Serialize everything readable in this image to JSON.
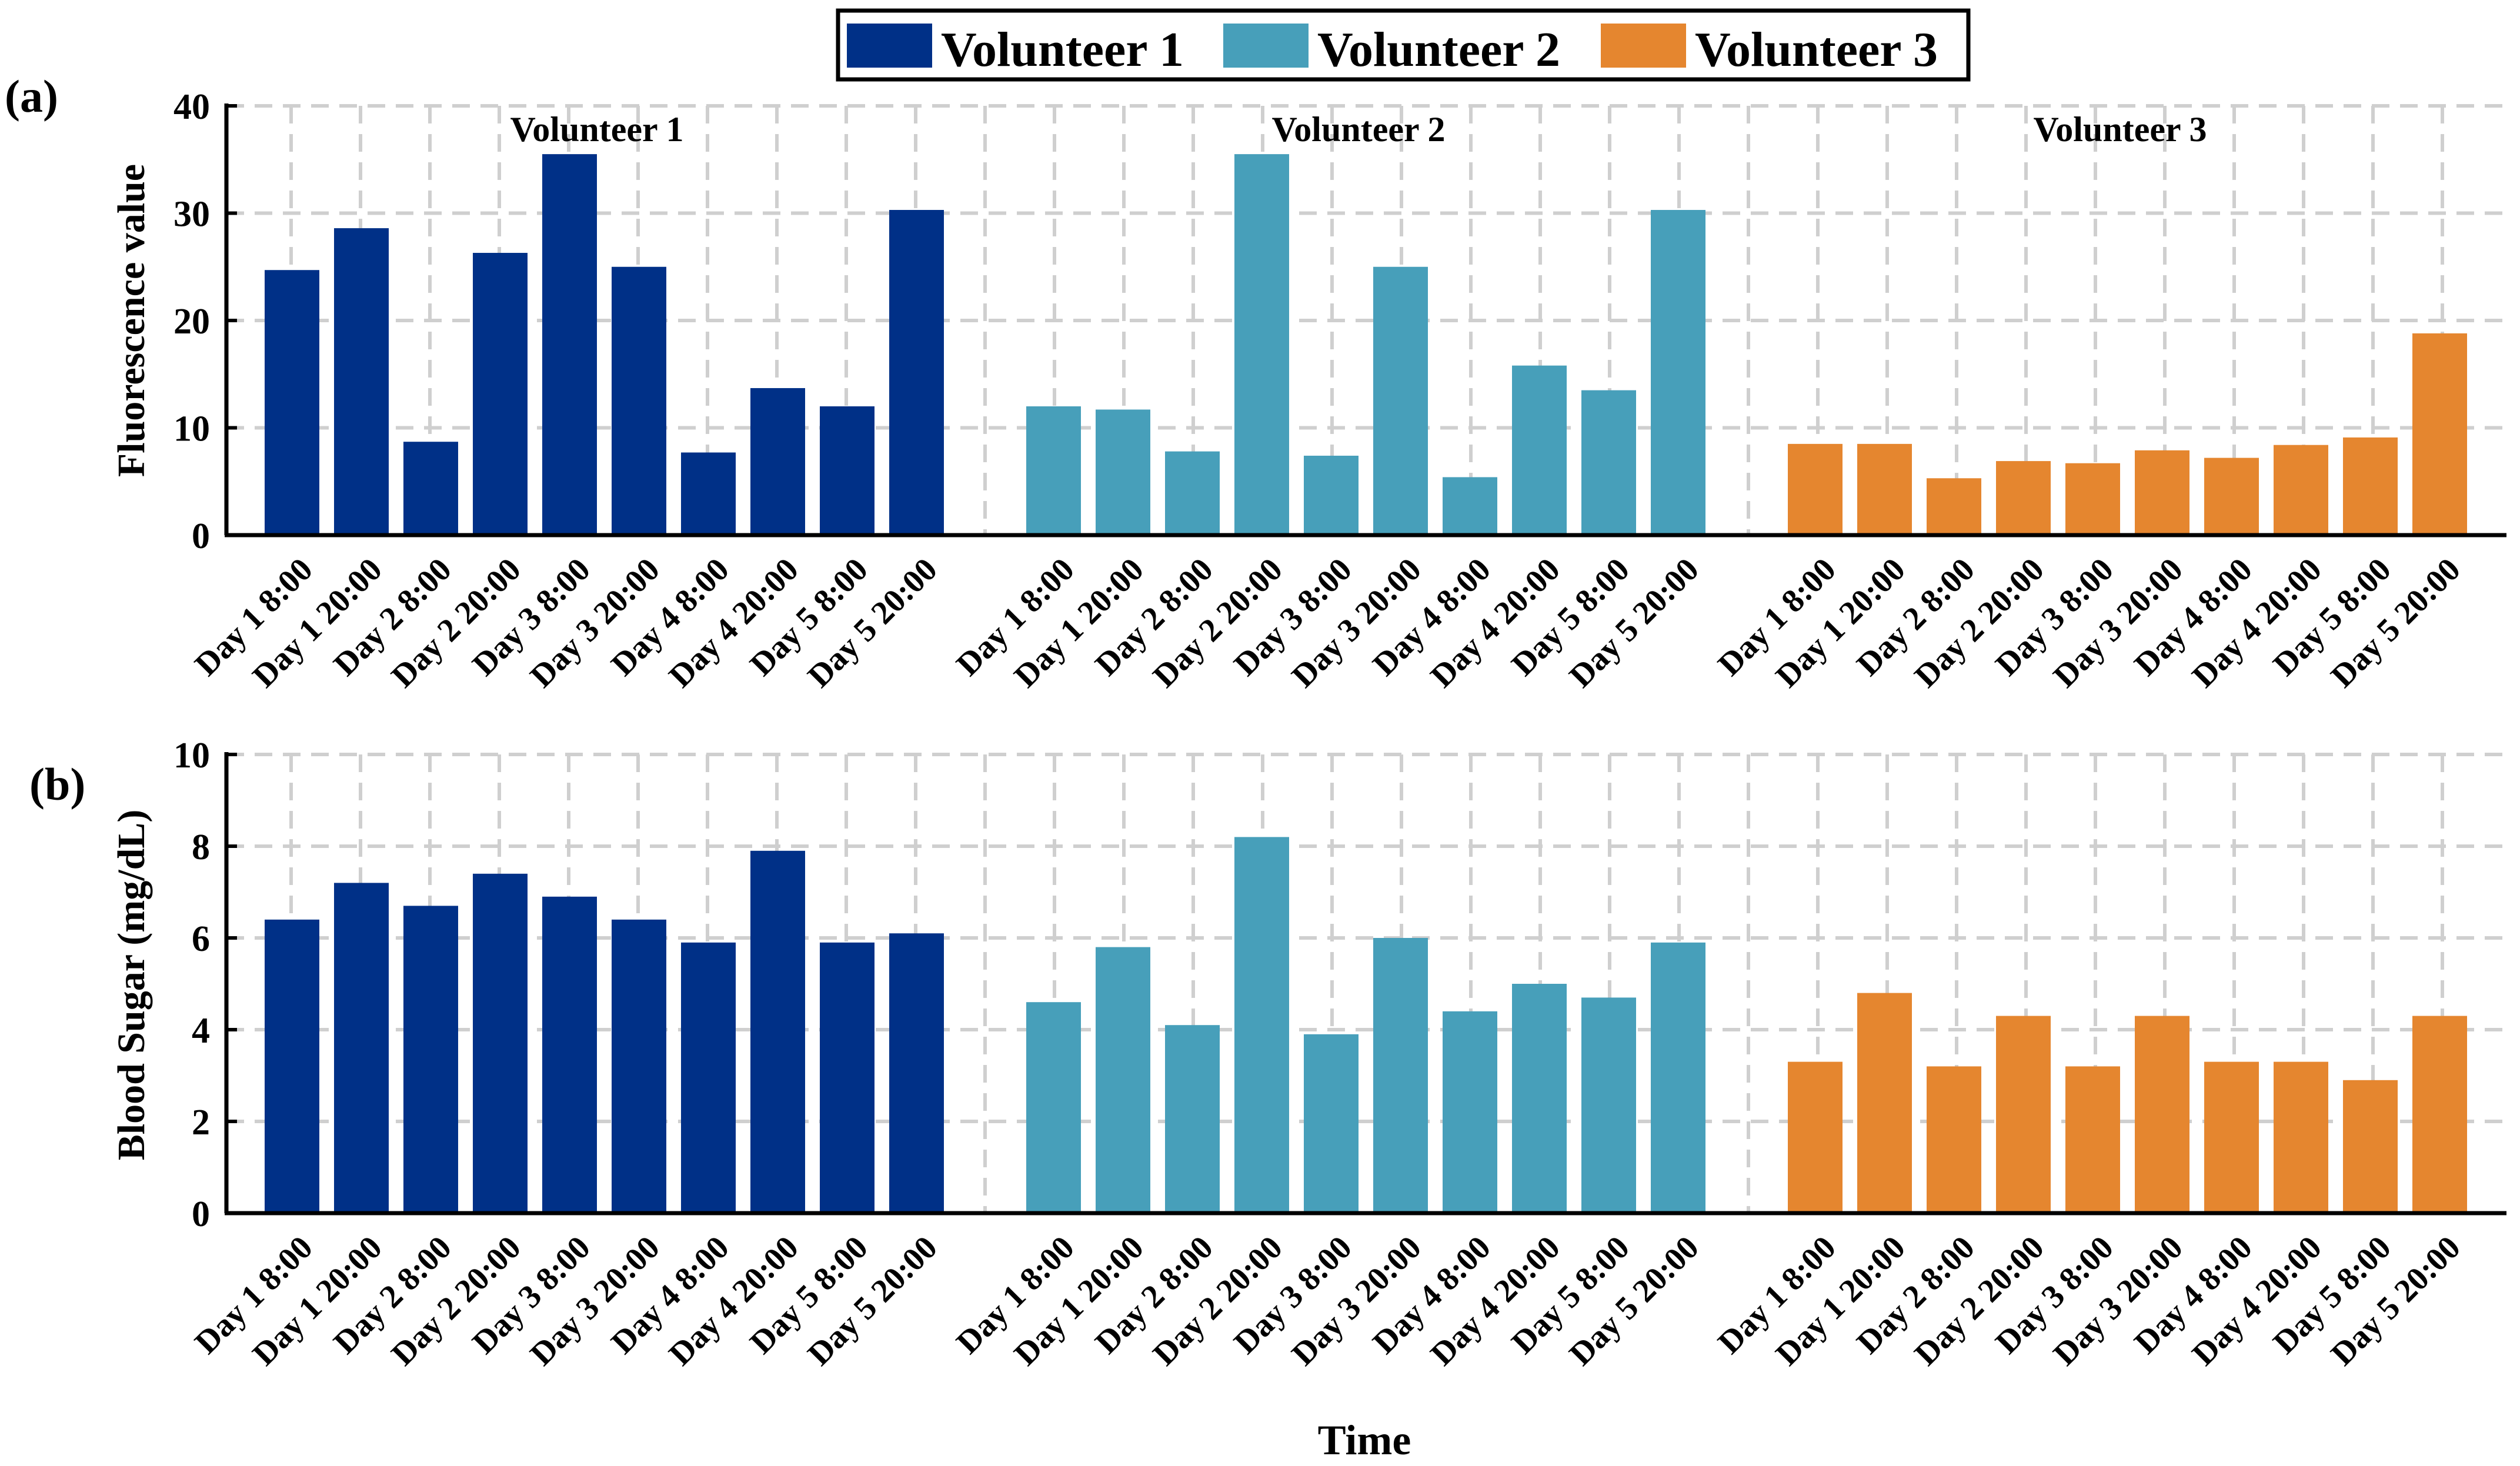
{
  "legend": {
    "entries": [
      {
        "label": "Volunteer 1",
        "color": "#003087"
      },
      {
        "label": "Volunteer 2",
        "color": "#479fba"
      },
      {
        "label": "Volunteer 3",
        "color": "#e5862f"
      }
    ]
  },
  "xlabel": "Time",
  "chart_data": [
    {
      "type": "bar",
      "panel_label": "(a)",
      "ylabel": "Fluorescence value",
      "ylim": [
        0,
        40
      ],
      "yticks": [
        "0",
        "10",
        "20",
        "30",
        "40"
      ],
      "grid": true,
      "categories": [
        "Day 1 8:00",
        "Day 1 20:00",
        "Day 2 8:00",
        "Day 2 20:00",
        "Day 3 8:00",
        "Day 3 20:00",
        "Day 4 8:00",
        "Day 4 20:00",
        "Day 5 8:00",
        "Day 5 20:00"
      ],
      "series": [
        {
          "name": "Volunteer 1",
          "title": "Volunteer 1",
          "color": "#003087",
          "values": [
            24.7,
            28.6,
            8.7,
            26.3,
            35.5,
            25.0,
            7.7,
            13.7,
            12.0,
            30.3
          ]
        },
        {
          "name": "Volunteer 2",
          "title": "Volunteer 2",
          "color": "#479fba",
          "values": [
            12.0,
            11.7,
            7.8,
            35.5,
            7.4,
            25.0,
            5.4,
            15.8,
            13.5,
            30.3
          ]
        },
        {
          "name": "Volunteer 3",
          "title": "Volunteer 3",
          "color": "#e5862f",
          "values": [
            8.5,
            8.5,
            5.3,
            6.9,
            6.7,
            7.9,
            7.2,
            8.4,
            9.1,
            18.8
          ]
        }
      ]
    },
    {
      "type": "bar",
      "panel_label": "(b)",
      "ylabel": "Blood Sugar (mg/dL)",
      "ylim": [
        0,
        10
      ],
      "yticks": [
        "0",
        "2",
        "4",
        "6",
        "8",
        "10"
      ],
      "grid": true,
      "categories": [
        "Day 1 8:00",
        "Day 1 20:00",
        "Day 2 8:00",
        "Day 2 20:00",
        "Day 3 8:00",
        "Day 3 20:00",
        "Day 4 8:00",
        "Day 4 20:00",
        "Day 5 8:00",
        "Day 5 20:00"
      ],
      "series": [
        {
          "name": "Volunteer 1",
          "title": "",
          "color": "#003087",
          "values": [
            6.4,
            7.2,
            6.7,
            7.4,
            6.9,
            6.4,
            5.9,
            7.9,
            5.9,
            6.1
          ]
        },
        {
          "name": "Volunteer 2",
          "title": "",
          "color": "#479fba",
          "values": [
            4.6,
            5.8,
            4.1,
            8.2,
            3.9,
            6.0,
            4.4,
            5.0,
            4.7,
            5.9
          ]
        },
        {
          "name": "Volunteer 3",
          "title": "",
          "color": "#e5862f",
          "values": [
            3.3,
            4.8,
            3.2,
            4.3,
            3.2,
            4.3,
            3.3,
            3.3,
            2.9,
            4.3
          ]
        }
      ]
    }
  ]
}
